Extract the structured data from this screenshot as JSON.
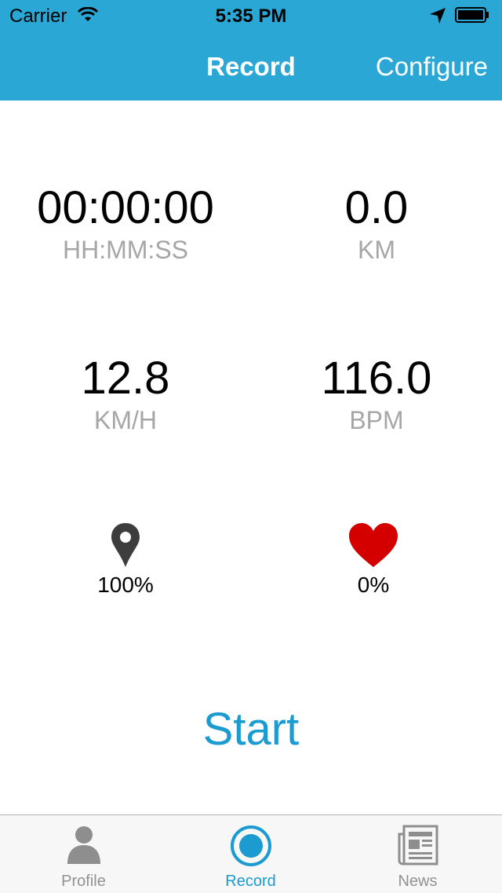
{
  "status_bar": {
    "carrier": "Carrier",
    "time": "5:35 PM"
  },
  "nav": {
    "title": "Record",
    "right_button": "Configure",
    "color": "#2aa7d4"
  },
  "stats": {
    "duration": {
      "value": "00:00:00",
      "unit": "HH:MM:SS"
    },
    "distance": {
      "value": "0.0",
      "unit": "KM"
    },
    "speed": {
      "value": "12.8",
      "unit": "KM/H"
    },
    "heart_rate": {
      "value": "116.0",
      "unit": "BPM"
    }
  },
  "sensors": {
    "gps": {
      "icon": "location-pin-icon",
      "value": "100%"
    },
    "heart": {
      "icon": "heart-icon",
      "value": "0%",
      "color": "#d40000"
    }
  },
  "start_label": "Start",
  "tabs": [
    {
      "label": "Profile",
      "icon": "person-icon"
    },
    {
      "label": "Record",
      "icon": "record-icon",
      "active": true
    },
    {
      "label": "News",
      "icon": "newspaper-icon"
    }
  ]
}
